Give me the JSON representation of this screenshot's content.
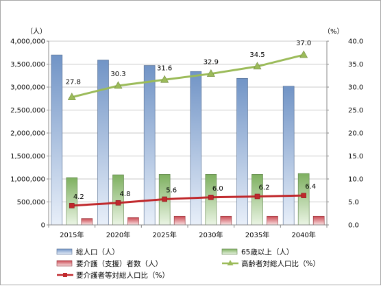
{
  "chart_data": {
    "type": "bar",
    "categories": [
      "2015年",
      "2020年",
      "2025年",
      "2030年",
      "2035年",
      "2040年"
    ],
    "series": [
      {
        "name": "総人口（人）",
        "kind": "bar",
        "axis": "left",
        "color": "#7ea4dc",
        "values": [
          3700000,
          3590000,
          3470000,
          3340000,
          3190000,
          3020000
        ]
      },
      {
        "name": "65歳以上（人）",
        "kind": "bar",
        "axis": "left",
        "color": "#8cc46b",
        "values": [
          1030000,
          1090000,
          1100000,
          1100000,
          1100000,
          1120000
        ]
      },
      {
        "name": "要介護（支援）者数（人）",
        "kind": "bar",
        "axis": "left",
        "color": "#e0505a",
        "values": [
          140000,
          160000,
          190000,
          190000,
          190000,
          190000
        ]
      },
      {
        "name": "高齢者対総人口比（%）",
        "kind": "line",
        "axis": "right",
        "color": "#9bbb59",
        "marker": "triangle",
        "values": [
          27.8,
          30.3,
          31.6,
          32.9,
          34.5,
          37.0
        ],
        "labels": [
          "27.8",
          "30.3",
          "31.6",
          "32.9",
          "34.5",
          "37.0"
        ]
      },
      {
        "name": "要介護者等対総人口比（%）",
        "kind": "line",
        "axis": "right",
        "color": "#c0282c",
        "marker": "square",
        "values": [
          4.2,
          4.8,
          5.6,
          6.0,
          6.2,
          6.4
        ],
        "labels": [
          "4.2",
          "4.8",
          "5.6",
          "6.0",
          "6.2",
          "6.4"
        ]
      }
    ],
    "y_left": {
      "unit": "（人）",
      "ylim": [
        0,
        4000000
      ],
      "ticks": [
        "0",
        "500,000",
        "1,000,000",
        "1,500,000",
        "2,000,000",
        "2,500,000",
        "3,000,000",
        "3,500,000",
        "4,000,000"
      ]
    },
    "y_right": {
      "unit": "（%）",
      "ylim": [
        0,
        40
      ],
      "ticks": [
        "0.0",
        "5.0",
        "10.0",
        "15.0",
        "20.0",
        "25.0",
        "30.0",
        "35.0",
        "40.0"
      ]
    },
    "grid": true,
    "legend_position": "bottom"
  }
}
